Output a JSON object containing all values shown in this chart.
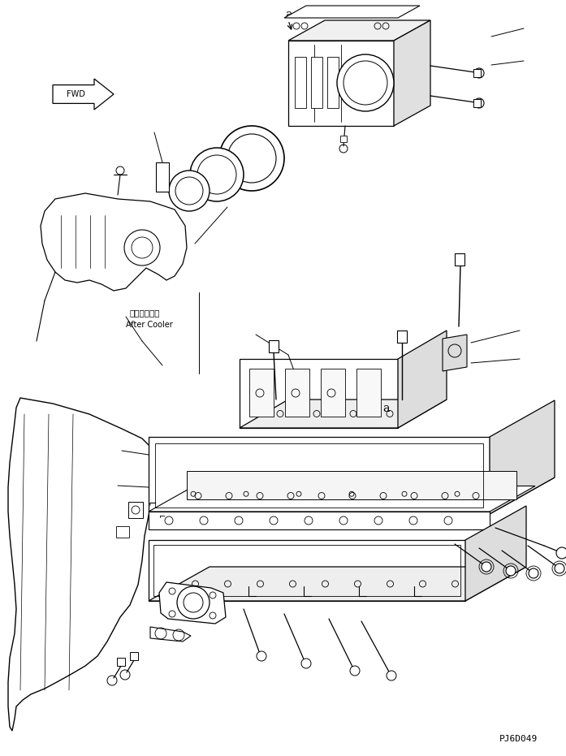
{
  "background_color": "#ffffff",
  "line_color": "#000000",
  "fig_width": 6.97,
  "fig_height": 9.31,
  "dpi": 100,
  "part_code": "PJ6D049",
  "after_cooler_jp": "アフタクーラ",
  "after_cooler_en": "After Cooler"
}
